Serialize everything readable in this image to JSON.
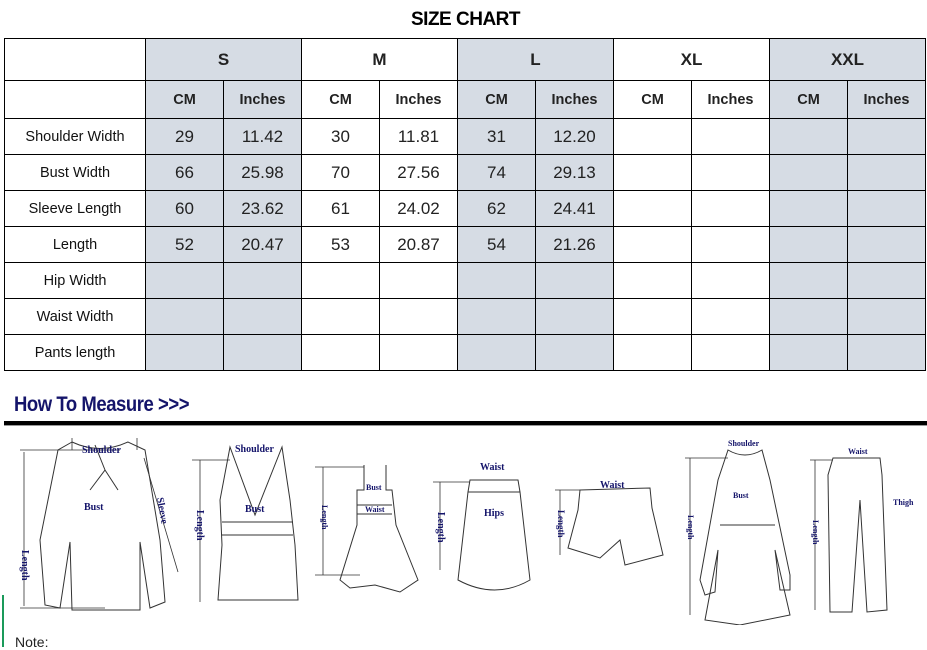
{
  "title": "SIZE CHART",
  "sizes": [
    "S",
    "M",
    "L",
    "XL",
    "XXL"
  ],
  "units": [
    "CM",
    "Inches"
  ],
  "rows": [
    {
      "label": "Shoulder Width",
      "values": [
        "29",
        "11.42",
        "30",
        "11.81",
        "31",
        "12.20",
        "",
        "",
        "",
        ""
      ]
    },
    {
      "label": "Bust Width",
      "values": [
        "66",
        "25.98",
        "70",
        "27.56",
        "74",
        "29.13",
        "",
        "",
        "",
        ""
      ]
    },
    {
      "label": "Sleeve Length",
      "values": [
        "60",
        "23.62",
        "61",
        "24.02",
        "62",
        "24.41",
        "",
        "",
        "",
        ""
      ]
    },
    {
      "label": "Length",
      "values": [
        "52",
        "20.47",
        "53",
        "20.87",
        "54",
        "21.26",
        "",
        "",
        "",
        ""
      ]
    },
    {
      "label": "Hip Width",
      "values": [
        "",
        "",
        "",
        "",
        "",
        "",
        "",
        "",
        "",
        ""
      ]
    },
    {
      "label": "Waist Width",
      "values": [
        "",
        "",
        "",
        "",
        "",
        "",
        "",
        "",
        "",
        ""
      ]
    },
    {
      "label": "Pants length",
      "values": [
        "",
        "",
        "",
        "",
        "",
        "",
        "",
        "",
        "",
        ""
      ]
    }
  ],
  "colors": {
    "size_label": "#ff0000",
    "shaded_column": "#d6dce4",
    "heading": "#14146a"
  },
  "how_to_measure": {
    "heading": "How To Measure >>>",
    "labels": {
      "shoulder": "Shoulder",
      "bust": "Bust",
      "sleeve": "Sleeve",
      "length": "Length",
      "waist": "Waist",
      "hips": "Hips",
      "thigh": "Thigh"
    }
  },
  "note": "Note:"
}
